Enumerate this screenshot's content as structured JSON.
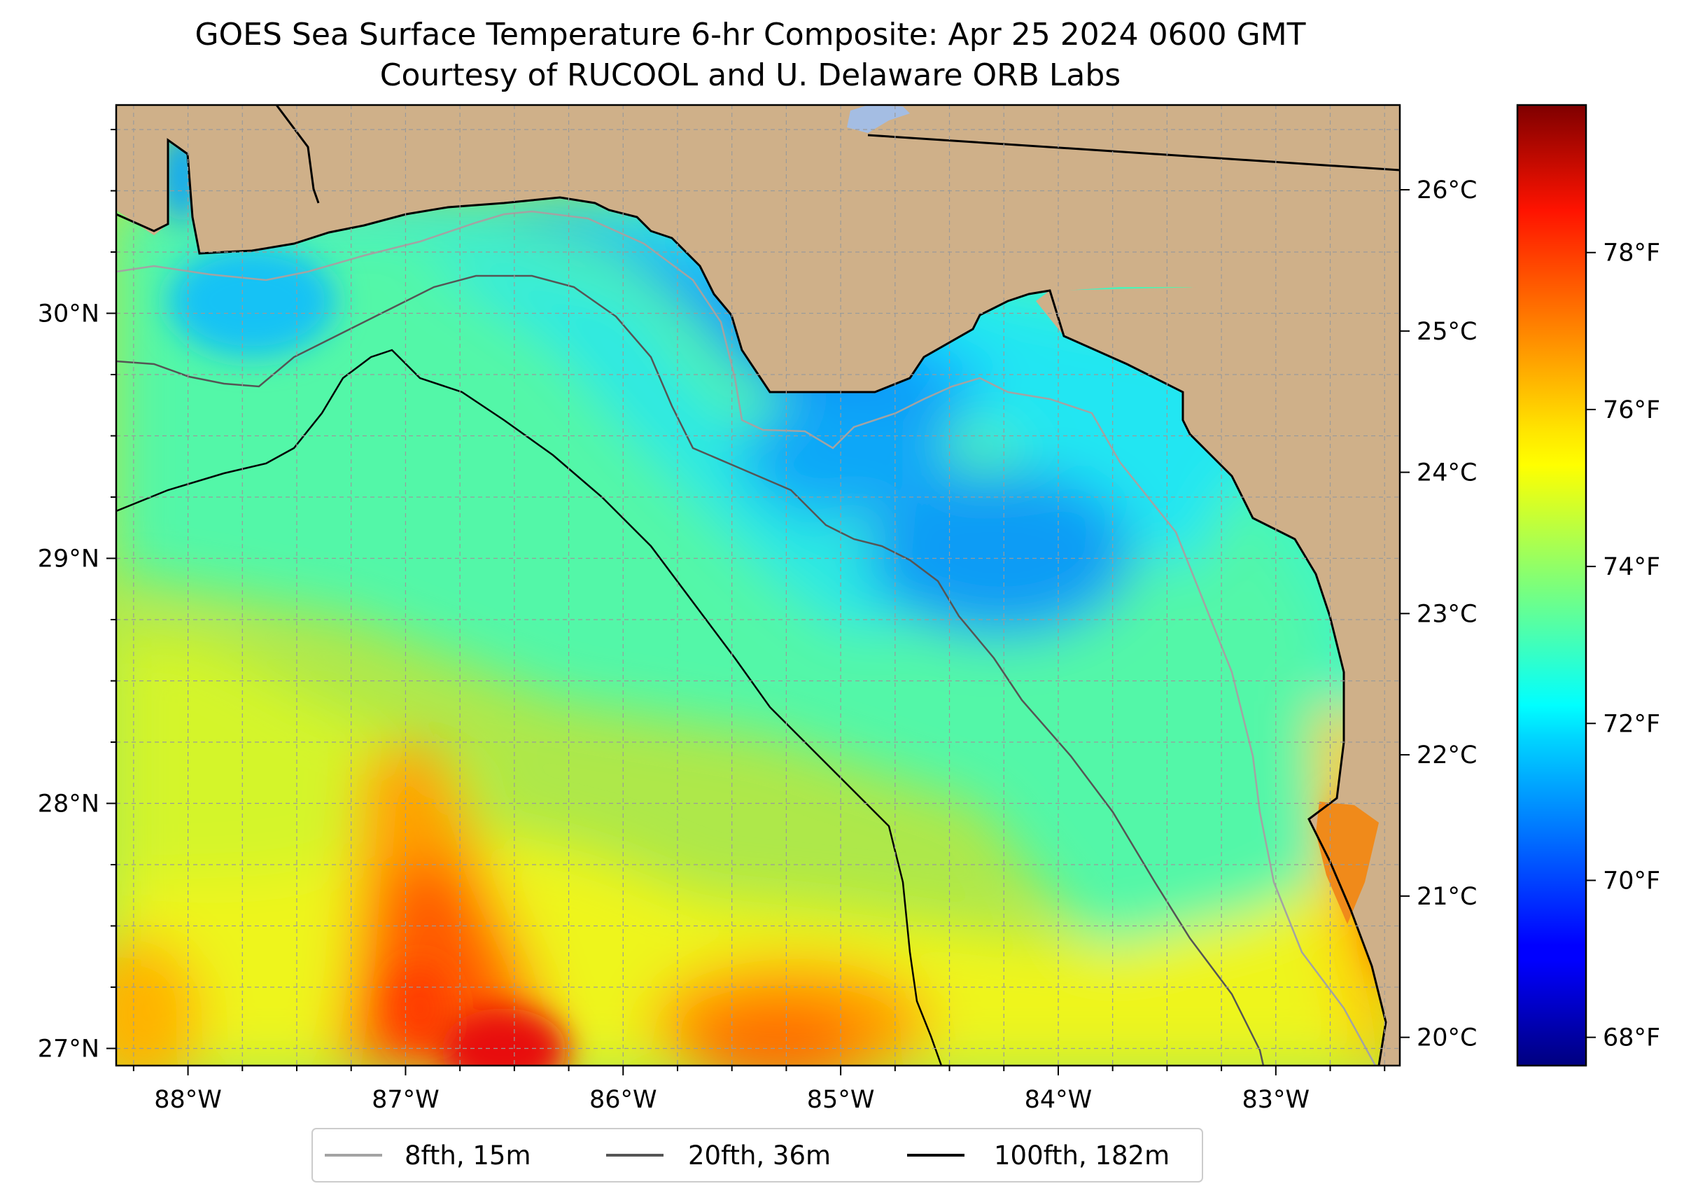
{
  "figure": {
    "title": "GOES Sea Surface Temperature 6-hr Composite: Apr 25 2024 0600 GMT",
    "subtitle": "Courtesy of RUCOOL and U. Delaware ORB Labs"
  },
  "map": {
    "projection": "lat-lon",
    "lon_range": [
      -88.33,
      -82.43
    ],
    "lat_range": [
      26.93,
      30.85
    ],
    "grid": true,
    "x_ticks": [
      {
        "value": -88,
        "label": "88°W"
      },
      {
        "value": -87,
        "label": "87°W"
      },
      {
        "value": -86,
        "label": "86°W"
      },
      {
        "value": -85,
        "label": "85°W"
      },
      {
        "value": -84,
        "label": "84°W"
      },
      {
        "value": -83,
        "label": "83°W"
      }
    ],
    "y_ticks": [
      {
        "value": 27,
        "label": "27°N"
      },
      {
        "value": 28,
        "label": "28°N"
      },
      {
        "value": 29,
        "label": "29°N"
      },
      {
        "value": 30,
        "label": "30°N"
      }
    ],
    "land_color": "#cfb089",
    "colormap": "jet",
    "sst_range_c": [
      19.8,
      26.6
    ]
  },
  "colorbar": {
    "celsius_ticks": [
      {
        "value": 20,
        "label": "20°C"
      },
      {
        "value": 21,
        "label": "21°C"
      },
      {
        "value": 22,
        "label": "22°C"
      },
      {
        "value": 23,
        "label": "23°C"
      },
      {
        "value": 24,
        "label": "24°C"
      },
      {
        "value": 25,
        "label": "25°C"
      },
      {
        "value": 26,
        "label": "26°C"
      }
    ],
    "fahrenheit_ticks": [
      {
        "value": 68,
        "label": "68°F"
      },
      {
        "value": 70,
        "label": "70°F"
      },
      {
        "value": 72,
        "label": "72°F"
      },
      {
        "value": 74,
        "label": "74°F"
      },
      {
        "value": 76,
        "label": "76°F"
      },
      {
        "value": 78,
        "label": "78°F"
      }
    ]
  },
  "legend": {
    "placement": "below-map",
    "items": [
      {
        "label": "8fth, 15m",
        "color": "#a3a3a3"
      },
      {
        "label": "20fth, 36m",
        "color": "#555555"
      },
      {
        "label": "100fth, 182m",
        "color": "#000000"
      }
    ]
  }
}
